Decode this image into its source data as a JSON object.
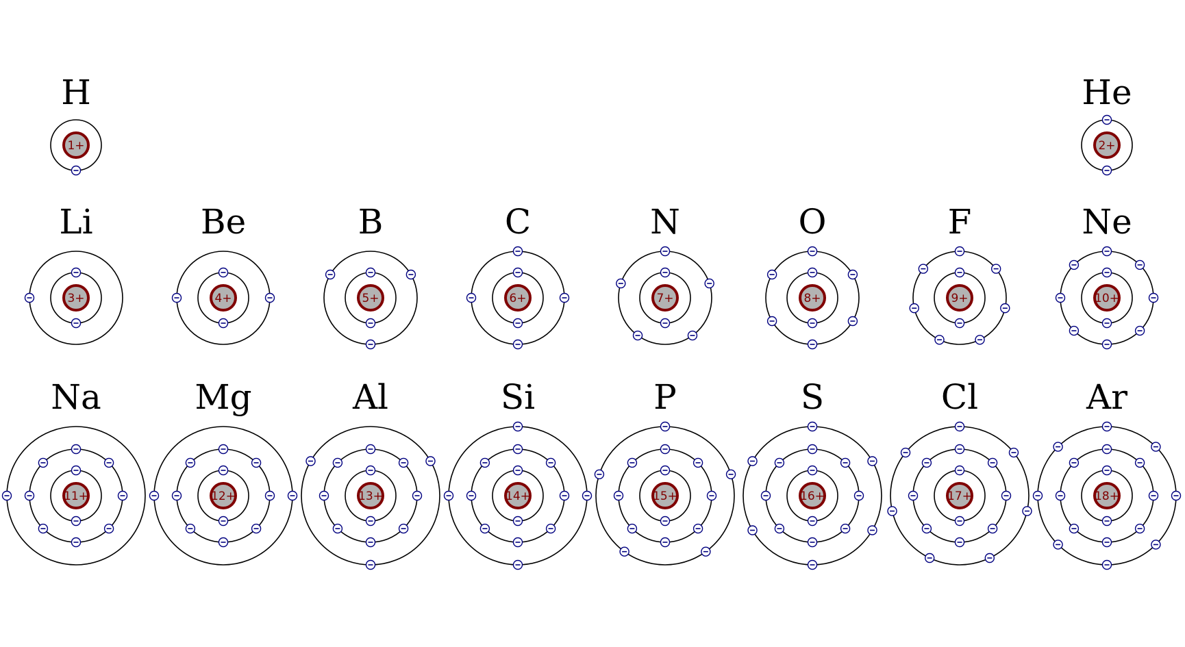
{
  "colors": {
    "background": "#ffffff",
    "orbit": "#000000",
    "nucleus_fill": "#b3b3b3",
    "nucleus_stroke": "#800000",
    "charge_text": "#800000",
    "electron_stroke": "#000080"
  },
  "electron_glyph": "⊖",
  "elements": [
    {
      "symbol": "H",
      "charge": "1+",
      "shells": [
        1
      ]
    },
    {
      "symbol": "He",
      "charge": "2+",
      "shells": [
        2
      ]
    },
    {
      "symbol": "Li",
      "charge": "3+",
      "shells": [
        2,
        1
      ]
    },
    {
      "symbol": "Be",
      "charge": "4+",
      "shells": [
        2,
        2
      ]
    },
    {
      "symbol": "B",
      "charge": "5+",
      "shells": [
        2,
        3
      ]
    },
    {
      "symbol": "C",
      "charge": "6+",
      "shells": [
        2,
        4
      ]
    },
    {
      "symbol": "N",
      "charge": "7+",
      "shells": [
        2,
        5
      ]
    },
    {
      "symbol": "O",
      "charge": "8+",
      "shells": [
        2,
        6
      ]
    },
    {
      "symbol": "F",
      "charge": "9+",
      "shells": [
        2,
        7
      ]
    },
    {
      "symbol": "Ne",
      "charge": "10+",
      "shells": [
        2,
        8
      ]
    },
    {
      "symbol": "Na",
      "charge": "11+",
      "shells": [
        2,
        8,
        1
      ]
    },
    {
      "symbol": "Mg",
      "charge": "12+",
      "shells": [
        2,
        8,
        2
      ]
    },
    {
      "symbol": "Al",
      "charge": "13+",
      "shells": [
        2,
        8,
        3
      ]
    },
    {
      "symbol": "Si",
      "charge": "14+",
      "shells": [
        2,
        8,
        4
      ]
    },
    {
      "symbol": "P",
      "charge": "15+",
      "shells": [
        2,
        8,
        5
      ]
    },
    {
      "symbol": "S",
      "charge": "16+",
      "shells": [
        2,
        8,
        6
      ]
    },
    {
      "symbol": "Cl",
      "charge": "17+",
      "shells": [
        2,
        8,
        7
      ]
    },
    {
      "symbol": "Ar",
      "charge": "18+",
      "shells": [
        2,
        8,
        8
      ]
    }
  ]
}
